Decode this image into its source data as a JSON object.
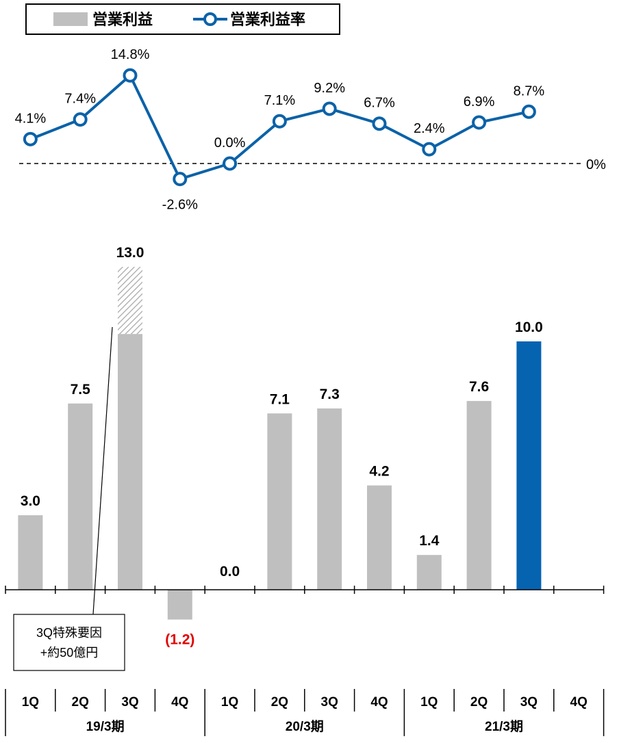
{
  "legend": {
    "bar_label": "営業利益",
    "line_label": "営業利益率"
  },
  "colors": {
    "bar": "#bfbfbf",
    "bar_highlight": "#0563b0",
    "line": "#0b62a8",
    "negative_label": "#e00000",
    "hatch": "#a6a6a6"
  },
  "chart_data": {
    "type": "bar",
    "categories": [
      "1Q",
      "2Q",
      "3Q",
      "4Q",
      "1Q",
      "2Q",
      "3Q",
      "4Q",
      "1Q",
      "2Q",
      "3Q",
      "4Q"
    ],
    "groups": [
      {
        "label": "19/3期",
        "count": 4
      },
      {
        "label": "20/3期",
        "count": 4
      },
      {
        "label": "21/3期",
        "count": 4
      }
    ],
    "series": [
      {
        "name": "営業利益",
        "type": "bar",
        "values": [
          3.0,
          7.5,
          13.0,
          -1.2,
          0.0,
          7.1,
          7.3,
          4.2,
          1.4,
          7.6,
          10.0,
          null
        ],
        "labels": [
          "3.0",
          "7.5",
          "13.0",
          "(1.2)",
          "0.0",
          "7.1",
          "7.3",
          "4.2",
          "1.4",
          "7.6",
          "10.0",
          ""
        ],
        "highlight_index": 10,
        "special_portion": {
          "index": 2,
          "from": 10.3,
          "to": 13.0
        }
      },
      {
        "name": "営業利益率",
        "type": "line",
        "values": [
          4.1,
          7.4,
          14.8,
          -2.6,
          0.0,
          7.1,
          9.2,
          6.7,
          2.4,
          6.9,
          8.7,
          null
        ],
        "labels": [
          "4.1%",
          "7.4%",
          "14.8%",
          "-2.6%",
          "0.0%",
          "7.1%",
          "9.2%",
          "6.7%",
          "2.4%",
          "6.9%",
          "8.7%",
          ""
        ]
      }
    ],
    "reference_line": {
      "value": 0,
      "label": "0%"
    },
    "annotation": {
      "lines": [
        "3Q特殊要因",
        "+約50億円"
      ],
      "target_index": 2
    }
  }
}
